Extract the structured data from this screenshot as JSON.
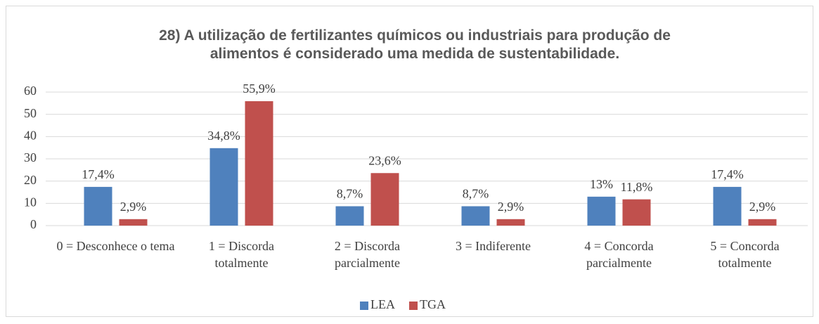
{
  "chart_data": {
    "type": "bar",
    "title": "28) A utilização de fertilizantes químicos ou industriais para produção de alimentos é considerado uma medida de sustentabilidade.",
    "categories": [
      "0 = Desconhece o tema",
      "1 = Discorda totalmente",
      "2 = Discorda parcialmente",
      "3 = Indiferente",
      "4 = Concorda parcialmente",
      "5 = Concorda totalmente"
    ],
    "series": [
      {
        "name": "LEA",
        "color": "#4f81bd",
        "values": [
          17.4,
          34.8,
          8.7,
          8.7,
          13,
          17.4
        ],
        "value_labels": [
          "17,4%",
          "34,8%",
          "8,7%",
          "8,7%",
          "13%",
          "17,4%"
        ]
      },
      {
        "name": "TGA",
        "color": "#c0504d",
        "values": [
          2.9,
          55.9,
          23.6,
          2.9,
          11.8,
          2.9
        ],
        "value_labels": [
          "2,9%",
          "55,9%",
          "23,6%",
          "2,9%",
          "11,8%",
          "2,9%"
        ]
      }
    ],
    "ylim": [
      0,
      60
    ],
    "yticks": [
      0,
      10,
      20,
      30,
      40,
      50,
      60
    ],
    "grid": true,
    "legend": "bottom"
  }
}
